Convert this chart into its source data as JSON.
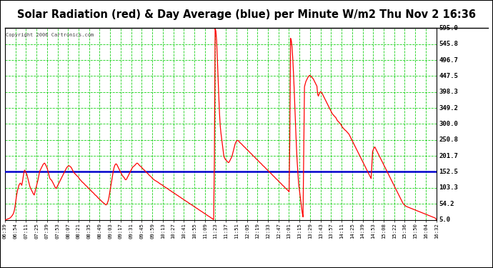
{
  "title": "Solar Radiation (red) & Day Average (blue) per Minute W/m2 Thu Nov 2 16:36",
  "copyright": "Copyright 2006 Cartronics.com",
  "y_min": 5.0,
  "y_max": 595.0,
  "y_ticks": [
    5.0,
    54.2,
    103.3,
    152.5,
    201.7,
    250.8,
    300.0,
    349.2,
    398.3,
    447.5,
    496.7,
    545.8,
    595.0
  ],
  "blue_line_y": 152.5,
  "line_color": "#ff0000",
  "avg_color": "#0000cc",
  "plot_bg": "#ffffff",
  "grid_color": "#00cc00",
  "x_labels": [
    "06:39",
    "06:54",
    "07:11",
    "07:25",
    "07:39",
    "07:53",
    "08:07",
    "08:21",
    "08:35",
    "08:49",
    "09:03",
    "09:17",
    "09:31",
    "09:45",
    "09:59",
    "10:13",
    "10:27",
    "10:41",
    "10:55",
    "11:09",
    "11:23",
    "11:37",
    "11:51",
    "12:05",
    "12:19",
    "12:33",
    "12:47",
    "13:01",
    "13:15",
    "13:29",
    "13:43",
    "13:57",
    "14:11",
    "14:25",
    "14:39",
    "14:53",
    "15:08",
    "15:22",
    "15:36",
    "15:50",
    "16:04",
    "16:32"
  ],
  "radiation": [
    5,
    5,
    6,
    7,
    8,
    9,
    10,
    12,
    15,
    18,
    22,
    28,
    38,
    55,
    75,
    90,
    100,
    110,
    115,
    118,
    115,
    110,
    130,
    145,
    160,
    155,
    150,
    145,
    135,
    125,
    115,
    105,
    100,
    95,
    90,
    85,
    80,
    90,
    100,
    110,
    120,
    130,
    145,
    155,
    160,
    165,
    170,
    175,
    178,
    180,
    175,
    170,
    165,
    155,
    145,
    135,
    130,
    128,
    125,
    120,
    115,
    110,
    105,
    100,
    105,
    110,
    115,
    120,
    125,
    130,
    135,
    140,
    145,
    150,
    155,
    160,
    165,
    168,
    170,
    172,
    170,
    168,
    165,
    160,
    155,
    150,
    148,
    145,
    142,
    140,
    138,
    135,
    130,
    128,
    125,
    122,
    120,
    118,
    115,
    112,
    110,
    108,
    105,
    102,
    100,
    98,
    95,
    92,
    90,
    88,
    85,
    82,
    80,
    78,
    75,
    72,
    70,
    68,
    65,
    63,
    60,
    58,
    56,
    54,
    52,
    50,
    55,
    60,
    70,
    85,
    100,
    115,
    130,
    145,
    160,
    170,
    175,
    178,
    175,
    170,
    165,
    160,
    155,
    150,
    145,
    140,
    138,
    135,
    130,
    128,
    130,
    135,
    140,
    145,
    150,
    155,
    160,
    165,
    168,
    170,
    172,
    175,
    178,
    180,
    178,
    175,
    172,
    170,
    168,
    165,
    162,
    160,
    158,
    155,
    152,
    150,
    148,
    145,
    142,
    140,
    138,
    135,
    132,
    130,
    128,
    126,
    125,
    123,
    122,
    120,
    118,
    116,
    115,
    113,
    112,
    110,
    108,
    106,
    105,
    103,
    102,
    100,
    98,
    96,
    95,
    93,
    91,
    90,
    88,
    86,
    85,
    83,
    81,
    80,
    78,
    76,
    75,
    73,
    71,
    70,
    68,
    66,
    65,
    63,
    61,
    60,
    58,
    56,
    55,
    53,
    51,
    50,
    48,
    46,
    45,
    43,
    41,
    40,
    38,
    36,
    35,
    33,
    31,
    30,
    28,
    26,
    25,
    23,
    21,
    20,
    18,
    16,
    15,
    13,
    11,
    10,
    8,
    6,
    5,
    595,
    590,
    560,
    500,
    430,
    370,
    310,
    280,
    260,
    240,
    220,
    200,
    195,
    190,
    188,
    185,
    182,
    180,
    185,
    190,
    195,
    200,
    210,
    220,
    230,
    240,
    245,
    248,
    250,
    248,
    245,
    242,
    240,
    238,
    235,
    232,
    230,
    228,
    225,
    222,
    220,
    218,
    215,
    212,
    210,
    208,
    205,
    202,
    200,
    198,
    195,
    192,
    190,
    188,
    185,
    182,
    180,
    178,
    175,
    172,
    170,
    168,
    165,
    162,
    160,
    158,
    155,
    152,
    150,
    148,
    145,
    142,
    140,
    138,
    135,
    132,
    130,
    128,
    125,
    122,
    120,
    118,
    115,
    112,
    110,
    108,
    105,
    102,
    100,
    98,
    95,
    92,
    90,
    565,
    560,
    540,
    500,
    450,
    390,
    320,
    260,
    200,
    160,
    120,
    100,
    80,
    60,
    40,
    20,
    10,
    410,
    420,
    430,
    435,
    440,
    445,
    448,
    450,
    448,
    445,
    442,
    440,
    435,
    430,
    425,
    420,
    415,
    380,
    390,
    395,
    400,
    398,
    395,
    390,
    385,
    380,
    375,
    370,
    365,
    360,
    355,
    350,
    345,
    340,
    335,
    330,
    328,
    325,
    322,
    320,
    315,
    310,
    308,
    305,
    302,
    300,
    295,
    290,
    288,
    285,
    282,
    280,
    278,
    275,
    272,
    270,
    265,
    260,
    255,
    250,
    245,
    240,
    235,
    230,
    225,
    220,
    215,
    210,
    205,
    200,
    195,
    190,
    185,
    180,
    175,
    170,
    165,
    160,
    155,
    150,
    145,
    140,
    135,
    130,
    210,
    220,
    225,
    230,
    225,
    220,
    215,
    210,
    205,
    200,
    195,
    190,
    185,
    180,
    175,
    170,
    165,
    160,
    155,
    150,
    145,
    140,
    135,
    130,
    125,
    120,
    115,
    110,
    105,
    100,
    95,
    90,
    85,
    80,
    75,
    70,
    65,
    60,
    55,
    52,
    50,
    48,
    46,
    45,
    44,
    43,
    42,
    41,
    40,
    39,
    38,
    37,
    36,
    35,
    34,
    33,
    32,
    31,
    30,
    29,
    28,
    27,
    26,
    25,
    24,
    23,
    22,
    21,
    20,
    19,
    18,
    17,
    16,
    15,
    14,
    13,
    12,
    11,
    10,
    5
  ]
}
